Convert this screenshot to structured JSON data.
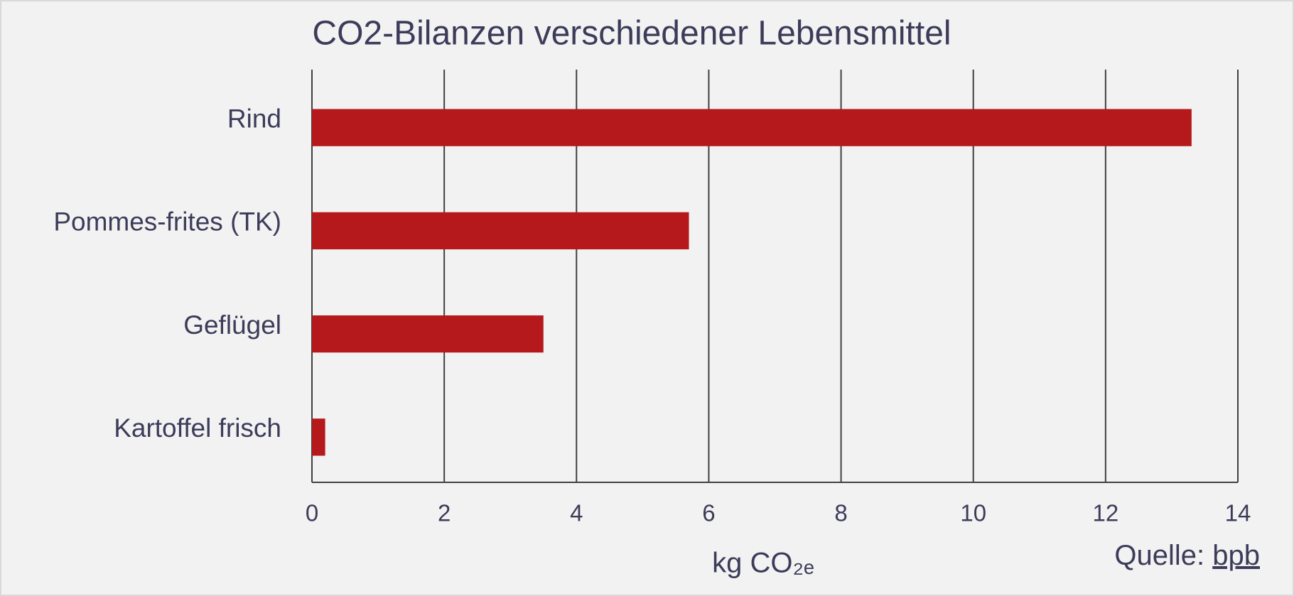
{
  "chart_data": {
    "type": "hbar",
    "title": "CO2-Bilanzen verschiedener Lebensmittel",
    "categories": [
      "Rind",
      "Pommes-frites (TK)",
      "Geflügel",
      "Kartoffel frisch"
    ],
    "values": [
      13.3,
      5.7,
      3.5,
      0.2
    ],
    "color": "#b5191b",
    "xlim": [
      0,
      14
    ],
    "xticks": [
      0,
      2,
      4,
      6,
      8,
      10,
      12,
      14
    ],
    "grid": true,
    "x_label": "kg CO₂ₑ",
    "source": {
      "label": "Quelle:",
      "link": "bpb"
    }
  }
}
